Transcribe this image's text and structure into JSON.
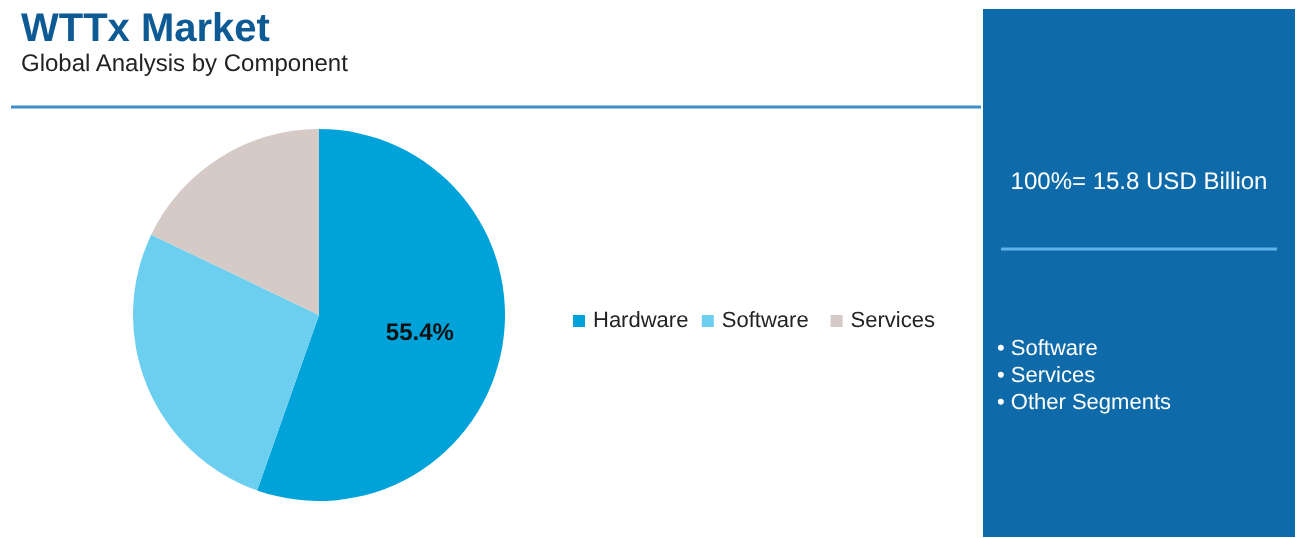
{
  "chart_data": {
    "type": "pie",
    "title": "WTTx Market",
    "subtitle": "Global Analysis by Component",
    "categories": [
      "Hardware",
      "Software",
      "Services"
    ],
    "values": [
      55.4,
      26.7,
      17.9
    ],
    "colors": [
      "#00a3d9",
      "#6dcff0",
      "#d5cac5"
    ],
    "value_labels": [
      "55.4%",
      null,
      null
    ],
    "legend": "right",
    "annotations": [
      "100%= 15.8 USD Billion",
      "• Software",
      "• Services",
      "• Other Segments"
    ]
  }
}
